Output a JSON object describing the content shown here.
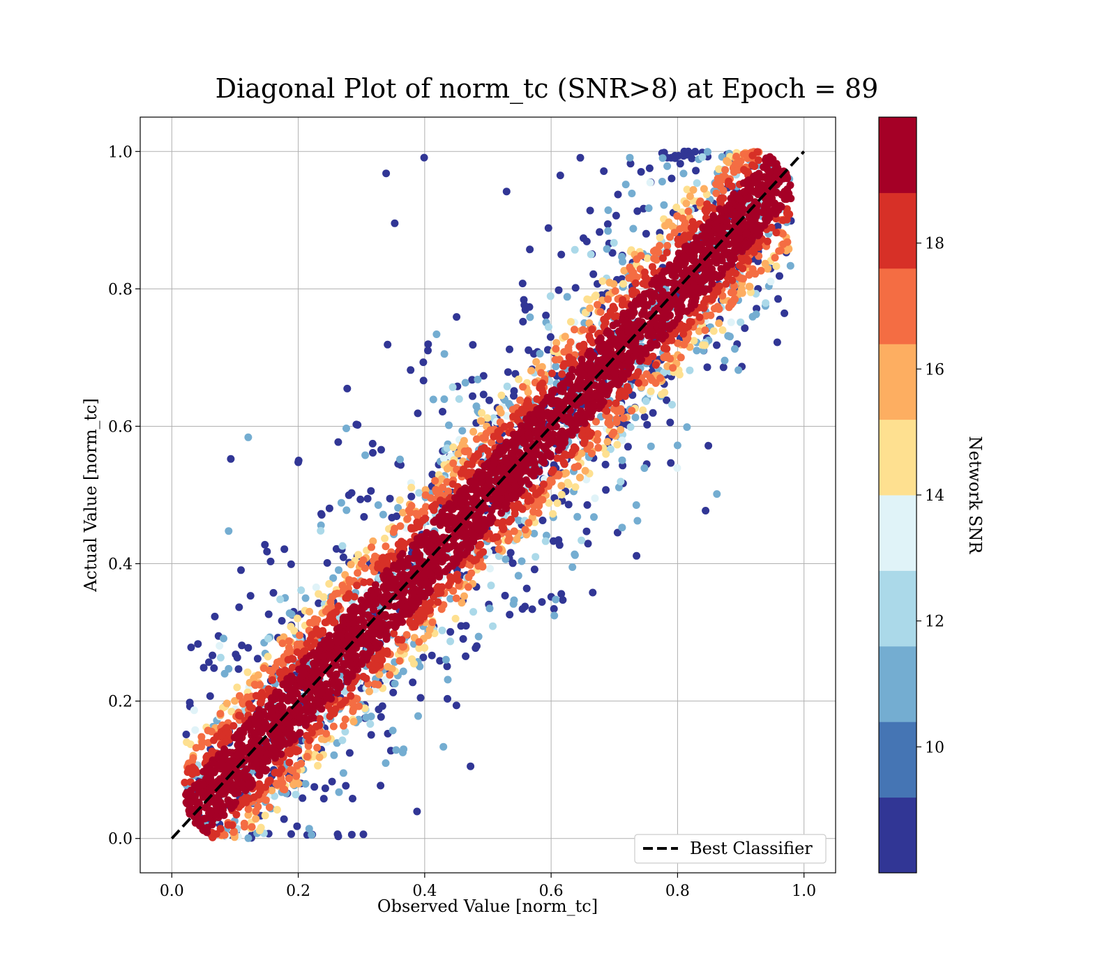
{
  "chart_data": {
    "type": "scatter",
    "title": "Diagonal Plot of norm_tc (SNR>8) at Epoch = 89",
    "xlabel": "Observed Value [norm_tc]",
    "ylabel": "Actual Value [norm_tc]",
    "xlim": [
      -0.05,
      1.05
    ],
    "ylim": [
      -0.05,
      1.05
    ],
    "xticks": [
      0.0,
      0.2,
      0.4,
      0.6,
      0.8,
      1.0
    ],
    "yticks": [
      0.0,
      0.2,
      0.4,
      0.6,
      0.8,
      1.0
    ],
    "xtick_labels": [
      "0.0",
      "0.2",
      "0.4",
      "0.6",
      "0.8",
      "1.0"
    ],
    "ytick_labels": [
      "0.0",
      "0.2",
      "0.4",
      "0.6",
      "0.8",
      "1.0"
    ],
    "grid": true,
    "legend": {
      "position": "lower-right",
      "entries": [
        {
          "label": "Best Classifier",
          "style": "dashed",
          "color": "#000000"
        }
      ]
    },
    "reference_line": {
      "name": "Best Classifier",
      "x": [
        0.0,
        1.0
      ],
      "y": [
        0.0,
        1.0
      ],
      "color": "#000000",
      "style": "dashed"
    },
    "colorbar": {
      "label": "Network SNR",
      "range": [
        8,
        20
      ],
      "ticks": [
        10,
        12,
        14,
        16,
        18
      ],
      "tick_labels": [
        "10",
        "12",
        "14",
        "16",
        "18"
      ],
      "colors": [
        "#313695",
        "#4575b4",
        "#74add1",
        "#abd9e9",
        "#e0f3f8",
        "#fee090",
        "#fdae61",
        "#f46d43",
        "#d73027",
        "#a50026"
      ]
    },
    "series": [
      {
        "point_groups": [
          {
            "band": "core",
            "color_value": 19.5,
            "half_width": 0.05,
            "count": 2600
          },
          {
            "band": "edge",
            "color_value": 18.5,
            "half_width": 0.07,
            "count": 600
          },
          {
            "band": "edge",
            "color_value": 17.5,
            "half_width": 0.085,
            "count": 300
          },
          {
            "band": "edge",
            "color_value": 16.5,
            "half_width": 0.1,
            "count": 220
          },
          {
            "band": "edge",
            "color_value": 15.5,
            "half_width": 0.11,
            "count": 200
          },
          {
            "band": "edge",
            "color_value": 14.5,
            "half_width": 0.12,
            "count": 160
          },
          {
            "band": "halo",
            "color_value": 13.5,
            "half_width": 0.14,
            "count": 150
          },
          {
            "band": "halo",
            "color_value": 12.5,
            "half_width": 0.16,
            "count": 220
          },
          {
            "band": "halo",
            "color_value": 11.5,
            "half_width": 0.18,
            "count": 200
          },
          {
            "band": "halo",
            "color_value": 10.5,
            "half_width": 0.2,
            "count": 260
          },
          {
            "band": "halo",
            "color_value": 9.0,
            "half_width": 0.25,
            "count": 700
          }
        ]
      }
    ]
  }
}
